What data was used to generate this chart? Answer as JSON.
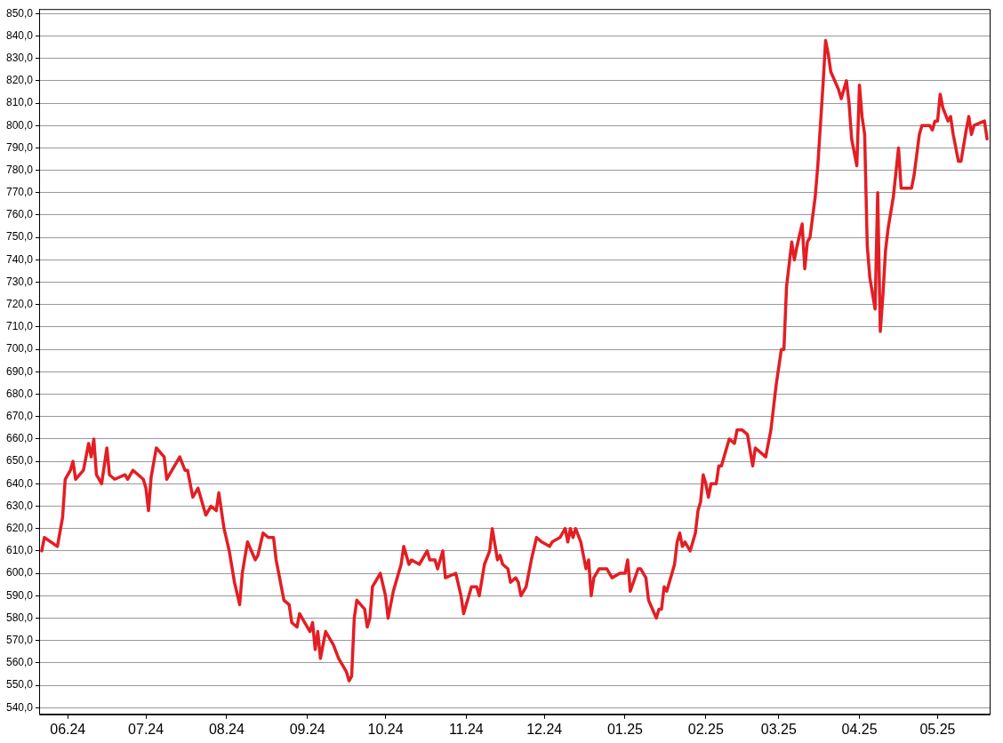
{
  "chart_data": {
    "type": "line",
    "grid": "y",
    "legend": false,
    "marker": "none",
    "line_style": "solid",
    "xlim": [
      "2024-05-21",
      "2025-05-21"
    ],
    "xticks": [
      {
        "value": "2024-06-01",
        "label": "06.24"
      },
      {
        "value": "2024-07-01",
        "label": "07.24"
      },
      {
        "value": "2024-08-01",
        "label": "08.24"
      },
      {
        "value": "2024-09-01",
        "label": "09.24"
      },
      {
        "value": "2024-10-01",
        "label": "10.24"
      },
      {
        "value": "2024-11-01",
        "label": "11.24"
      },
      {
        "value": "2024-12-01",
        "label": "12.24"
      },
      {
        "value": "2025-01-01",
        "label": "01.25"
      },
      {
        "value": "2025-02-01",
        "label": "02.25"
      },
      {
        "value": "2025-03-01",
        "label": "03.25"
      },
      {
        "value": "2025-04-01",
        "label": "04.25"
      },
      {
        "value": "2025-05-01",
        "label": "05.25"
      }
    ],
    "ylim": [
      537,
      852
    ],
    "yticks": [
      {
        "value": 540,
        "label": "540,0"
      },
      {
        "value": 550,
        "label": "550,0"
      },
      {
        "value": 560,
        "label": "560,0"
      },
      {
        "value": 570,
        "label": "570,0"
      },
      {
        "value": 580,
        "label": "580,0"
      },
      {
        "value": 590,
        "label": "590,0"
      },
      {
        "value": 600,
        "label": "600,0"
      },
      {
        "value": 610,
        "label": "610,0"
      },
      {
        "value": 620,
        "label": "620,0"
      },
      {
        "value": 630,
        "label": "630,0"
      },
      {
        "value": 640,
        "label": "640,0"
      },
      {
        "value": 650,
        "label": "650,0"
      },
      {
        "value": 660,
        "label": "660,0"
      },
      {
        "value": 670,
        "label": "670,0"
      },
      {
        "value": 680,
        "label": "680,0"
      },
      {
        "value": 690,
        "label": "690,0"
      },
      {
        "value": 700,
        "label": "700,0"
      },
      {
        "value": 710,
        "label": "710,0"
      },
      {
        "value": 720,
        "label": "720,0"
      },
      {
        "value": 730,
        "label": "730,0"
      },
      {
        "value": 740,
        "label": "740,0"
      },
      {
        "value": 750,
        "label": "750,0"
      },
      {
        "value": 760,
        "label": "760,0"
      },
      {
        "value": 770,
        "label": "770,0"
      },
      {
        "value": 780,
        "label": "780,0"
      },
      {
        "value": 790,
        "label": "790,0"
      },
      {
        "value": 800,
        "label": "800,0"
      },
      {
        "value": 810,
        "label": "810,0"
      },
      {
        "value": 820,
        "label": "820,0"
      },
      {
        "value": 830,
        "label": "830,0"
      },
      {
        "value": 840,
        "label": "840,0"
      },
      {
        "value": 850,
        "label": "850,0"
      }
    ],
    "series": [
      {
        "color": "#e31e24",
        "x": [
          "2024-05-22",
          "2024-05-23",
          "2024-05-28",
          "2024-05-30",
          "2024-05-31",
          "2024-06-02",
          "2024-06-03",
          "2024-06-04",
          "2024-06-07",
          "2024-06-09",
          "2024-06-10",
          "2024-06-11",
          "2024-06-12",
          "2024-06-14",
          "2024-06-16",
          "2024-06-17",
          "2024-06-19",
          "2024-06-23",
          "2024-06-24",
          "2024-06-26",
          "2024-06-30",
          "2024-07-01",
          "2024-07-02",
          "2024-07-03",
          "2024-07-05",
          "2024-07-08",
          "2024-07-09",
          "2024-07-10",
          "2024-07-14",
          "2024-07-16",
          "2024-07-17",
          "2024-07-19",
          "2024-07-21",
          "2024-07-23",
          "2024-07-24",
          "2024-07-26",
          "2024-07-28",
          "2024-07-29",
          "2024-07-31",
          "2024-08-02",
          "2024-08-04",
          "2024-08-06",
          "2024-08-07",
          "2024-08-09",
          "2024-08-12",
          "2024-08-13",
          "2024-08-15",
          "2024-08-17",
          "2024-08-19",
          "2024-08-20",
          "2024-08-23",
          "2024-08-25",
          "2024-08-26",
          "2024-08-28",
          "2024-08-29",
          "2024-08-31",
          "2024-09-02",
          "2024-09-03",
          "2024-09-04",
          "2024-09-05",
          "2024-09-06",
          "2024-09-08",
          "2024-09-10",
          "2024-09-11",
          "2024-09-13",
          "2024-09-16",
          "2024-09-17",
          "2024-09-18",
          "2024-09-19",
          "2024-09-20",
          "2024-09-23",
          "2024-09-24",
          "2024-09-25",
          "2024-09-26",
          "2024-09-29",
          "2024-10-01",
          "2024-10-02",
          "2024-10-04",
          "2024-10-07",
          "2024-10-08",
          "2024-10-10",
          "2024-10-11",
          "2024-10-14",
          "2024-10-17",
          "2024-10-18",
          "2024-10-20",
          "2024-10-21",
          "2024-10-23",
          "2024-10-24",
          "2024-10-28",
          "2024-10-30",
          "2024-10-31",
          "2024-11-03",
          "2024-11-05",
          "2024-11-06",
          "2024-11-08",
          "2024-11-10",
          "2024-11-11",
          "2024-11-13",
          "2024-11-14",
          "2024-11-15",
          "2024-11-17",
          "2024-11-18",
          "2024-11-20",
          "2024-11-21",
          "2024-11-22",
          "2024-11-24",
          "2024-11-26",
          "2024-11-28",
          "2024-11-30",
          "2024-12-03",
          "2024-12-04",
          "2024-12-07",
          "2024-12-09",
          "2024-12-10",
          "2024-12-11",
          "2024-12-12",
          "2024-12-13",
          "2024-12-15",
          "2024-12-17",
          "2024-12-18",
          "2024-12-19",
          "2024-12-20",
          "2024-12-22",
          "2024-12-25",
          "2024-12-27",
          "2024-12-30",
          "2025-01-01",
          "2025-01-02",
          "2025-01-03",
          "2025-01-06",
          "2025-01-07",
          "2025-01-09",
          "2025-01-10",
          "2025-01-13",
          "2025-01-14",
          "2025-01-15",
          "2025-01-16",
          "2025-01-17",
          "2025-01-20",
          "2025-01-21",
          "2025-01-22",
          "2025-01-23",
          "2025-01-24",
          "2025-01-26",
          "2025-01-28",
          "2025-01-29",
          "2025-01-30",
          "2025-01-31",
          "2025-02-01",
          "2025-02-02",
          "2025-02-03",
          "2025-02-05",
          "2025-02-06",
          "2025-02-07",
          "2025-02-10",
          "2025-02-12",
          "2025-02-13",
          "2025-02-15",
          "2025-02-17",
          "2025-02-19",
          "2025-02-20",
          "2025-02-24",
          "2025-02-26",
          "2025-02-27",
          "2025-02-28",
          "2025-03-02",
          "2025-03-03",
          "2025-03-04",
          "2025-03-06",
          "2025-03-07",
          "2025-03-08",
          "2025-03-10",
          "2025-03-11",
          "2025-03-12",
          "2025-03-13",
          "2025-03-15",
          "2025-03-16",
          "2025-03-18",
          "2025-03-19",
          "2025-03-20",
          "2025-03-21",
          "2025-03-24",
          "2025-03-25",
          "2025-03-27",
          "2025-03-28",
          "2025-03-29",
          "2025-03-31",
          "2025-04-01",
          "2025-04-02",
          "2025-04-03",
          "2025-04-04",
          "2025-04-05",
          "2025-04-07",
          "2025-04-08",
          "2025-04-09",
          "2025-04-10",
          "2025-04-11",
          "2025-04-12",
          "2025-04-14",
          "2025-04-16",
          "2025-04-17",
          "2025-04-21",
          "2025-04-22",
          "2025-04-24",
          "2025-04-25",
          "2025-04-28",
          "2025-04-29",
          "2025-04-30",
          "2025-05-01",
          "2025-05-02",
          "2025-05-03",
          "2025-05-05",
          "2025-05-06",
          "2025-05-07",
          "2025-05-08",
          "2025-05-09",
          "2025-05-10",
          "2025-05-12",
          "2025-05-13",
          "2025-05-14",
          "2025-05-15",
          "2025-05-19",
          "2025-05-20"
        ],
        "values": [
          610,
          616,
          612,
          625,
          642,
          646,
          650,
          642,
          646,
          658,
          652,
          660,
          644,
          640,
          656,
          644,
          642,
          644,
          642,
          646,
          642,
          638,
          628,
          643,
          656,
          652,
          642,
          644,
          652,
          646,
          646,
          634,
          638,
          630,
          626,
          630,
          628,
          636,
          620,
          610,
          596,
          586,
          600,
          614,
          606,
          608,
          618,
          616,
          616,
          606,
          588,
          586,
          578,
          576,
          582,
          578,
          574,
          578,
          566,
          574,
          562,
          574,
          570,
          568,
          562,
          556,
          552,
          554,
          580,
          588,
          584,
          576,
          580,
          594,
          600,
          590,
          580,
          592,
          604,
          612,
          604,
          606,
          604,
          610,
          606,
          606,
          602,
          610,
          598,
          600,
          590,
          582,
          594,
          594,
          590,
          604,
          610,
          620,
          606,
          608,
          604,
          602,
          596,
          598,
          596,
          590,
          594,
          606,
          616,
          614,
          612,
          614,
          616,
          620,
          614,
          620,
          616,
          620,
          614,
          602,
          606,
          590,
          598,
          602,
          602,
          598,
          600,
          600,
          606,
          592,
          602,
          602,
          598,
          588,
          580,
          584,
          584,
          594,
          592,
          604,
          614,
          618,
          612,
          614,
          610,
          618,
          628,
          632,
          644,
          640,
          634,
          640,
          640,
          648,
          648,
          660,
          658,
          664,
          664,
          662,
          648,
          656,
          652,
          664,
          674,
          684,
          700,
          700,
          728,
          748,
          740,
          746,
          756,
          736,
          748,
          750,
          768,
          782,
          818,
          838,
          832,
          824,
          816,
          812,
          820,
          810,
          794,
          782,
          818,
          804,
          796,
          746,
          732,
          718,
          770,
          708,
          724,
          744,
          754,
          768,
          790,
          772,
          772,
          778,
          796,
          800,
          800,
          798,
          802,
          802,
          814,
          808,
          802,
          804,
          796,
          790,
          784,
          784,
          798,
          804,
          796,
          800,
          802,
          794
        ]
      }
    ]
  }
}
